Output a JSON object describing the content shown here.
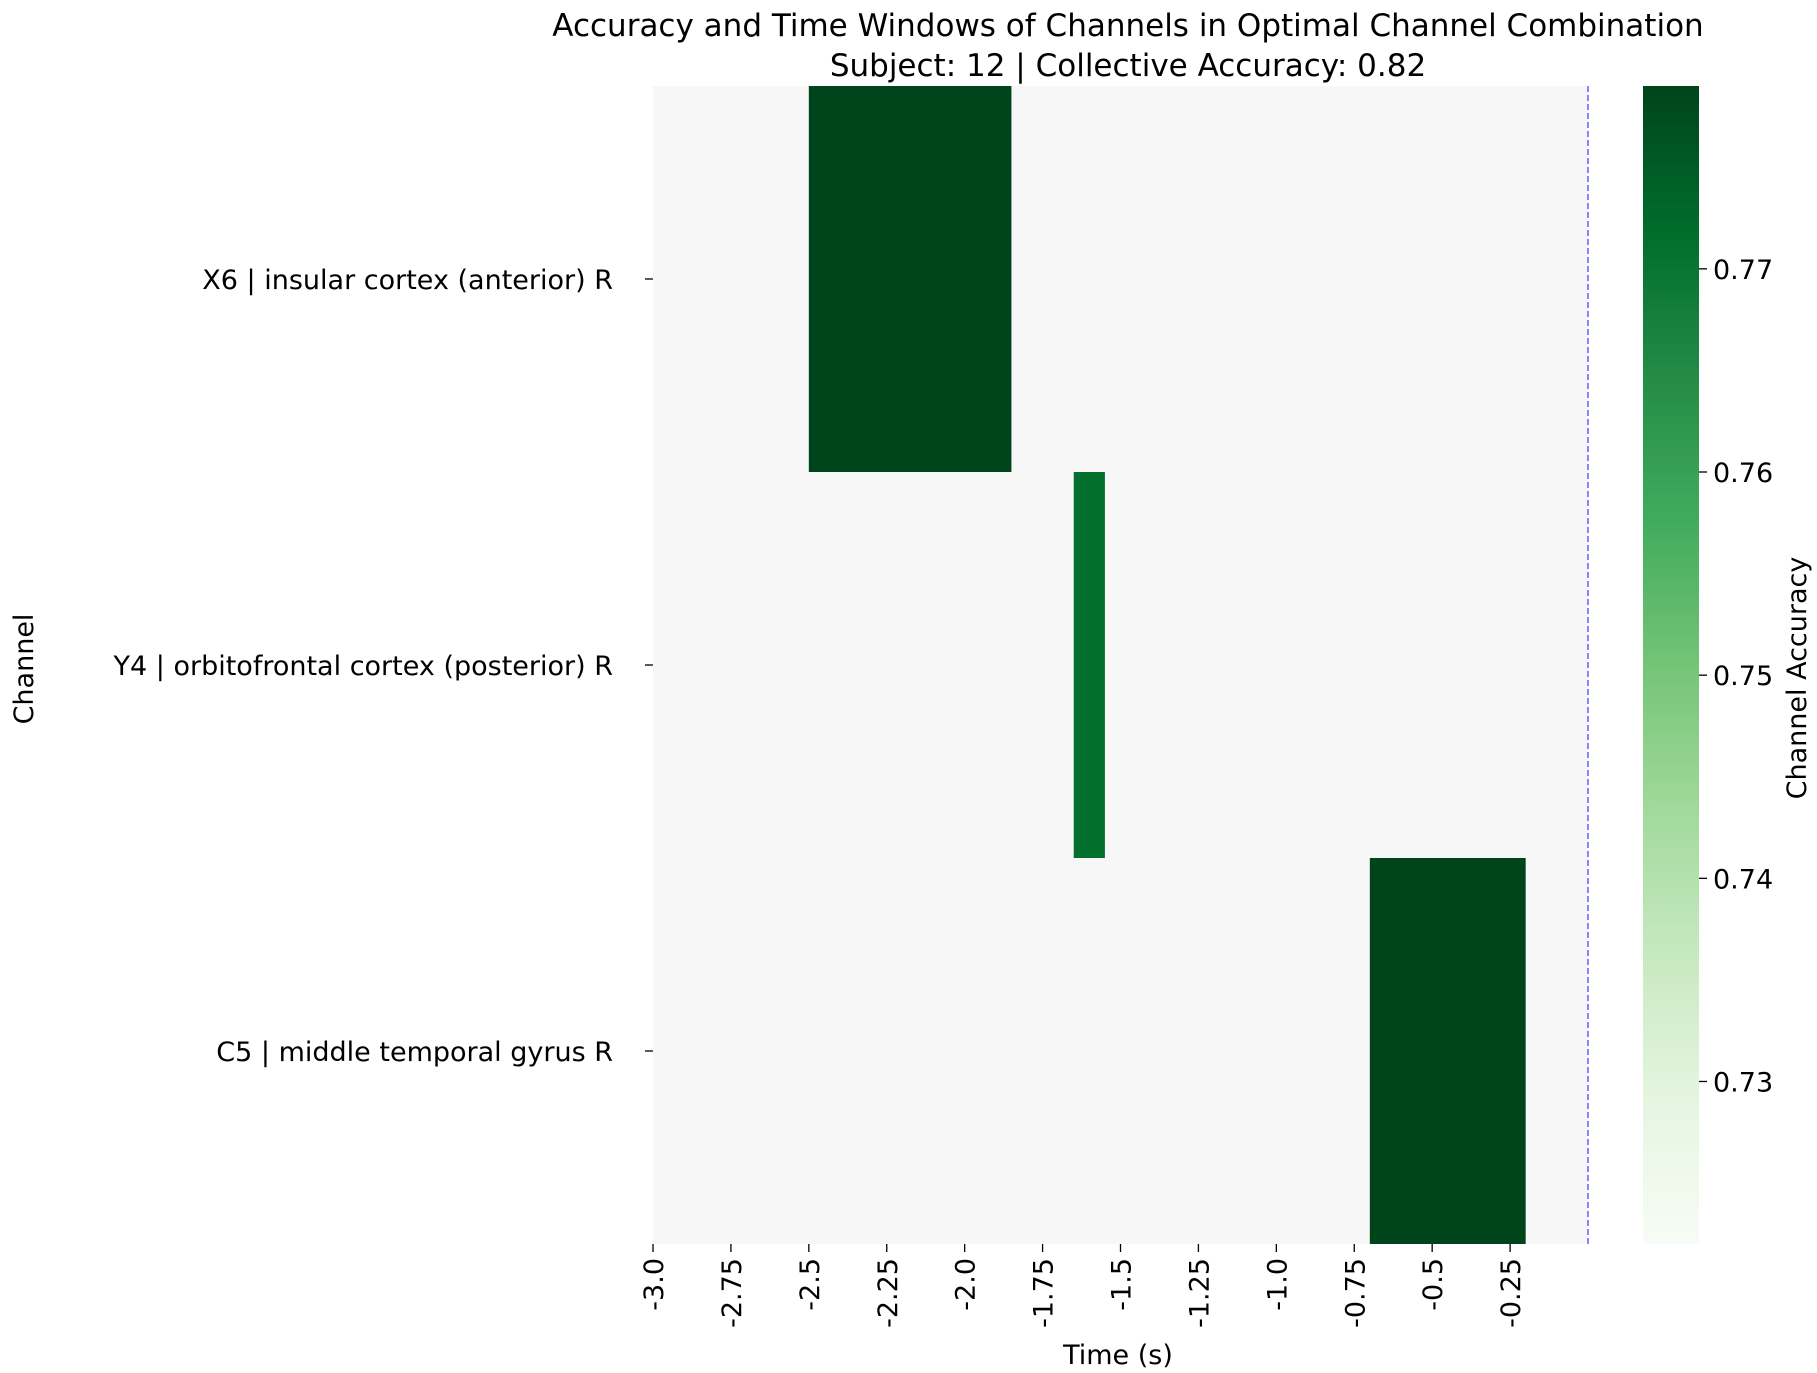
{
  "chart_data": {
    "type": "heatmap",
    "title": "Accuracy and Time Windows of Channels in Optimal Channel Combination",
    "subtitle": "Subject: 12 | Collective Accuracy: 0.82",
    "xlabel": "Time (s)",
    "ylabel": "Channel",
    "xlim": [
      -3.0,
      0.0
    ],
    "x_ticks": [
      -3.0,
      -2.75,
      -2.5,
      -2.25,
      -2.0,
      -1.75,
      -1.5,
      -1.25,
      -1.0,
      -0.75,
      -0.5,
      -0.25
    ],
    "x_tick_labels": [
      "-3.0",
      "-2.75",
      "-2.5",
      "-2.25",
      "-2.0",
      "-1.75",
      "-1.5",
      "-1.25",
      "-1.0",
      "-0.75",
      "-0.5",
      "-0.25"
    ],
    "channels": [
      "X6 | insular cortex (anterior) R",
      "Y4 | orbitofrontal cortex (posterior) R",
      "C5 | middle temporal gyrus R"
    ],
    "windows": [
      {
        "channel": "X6 | insular cortex (anterior) R",
        "start": -2.5,
        "end": -1.85,
        "accuracy": 0.779
      },
      {
        "channel": "Y4 | orbitofrontal cortex (posterior) R",
        "start": -1.65,
        "end": -1.55,
        "accuracy": 0.7715
      },
      {
        "channel": "C5 | middle temporal gyrus R",
        "start": -0.7,
        "end": -0.2,
        "accuracy": 0.779
      }
    ],
    "background_color": "#f7f7f7",
    "reference_line": {
      "x": 0.0,
      "color": "#0000ff",
      "style": "dashed"
    },
    "colorbar": {
      "label": "Channel Accuracy",
      "range": [
        0.722,
        0.779
      ],
      "ticks": [
        0.73,
        0.74,
        0.75,
        0.76,
        0.77
      ],
      "tick_labels": [
        "0.73",
        "0.74",
        "0.75",
        "0.76",
        "0.77"
      ],
      "colormap": "Greens",
      "stops": [
        "#f7fcf5",
        "#e5f5e0",
        "#c7e9c0",
        "#a1d99b",
        "#74c476",
        "#41ab5d",
        "#238b45",
        "#006d2c",
        "#00441b"
      ]
    }
  }
}
